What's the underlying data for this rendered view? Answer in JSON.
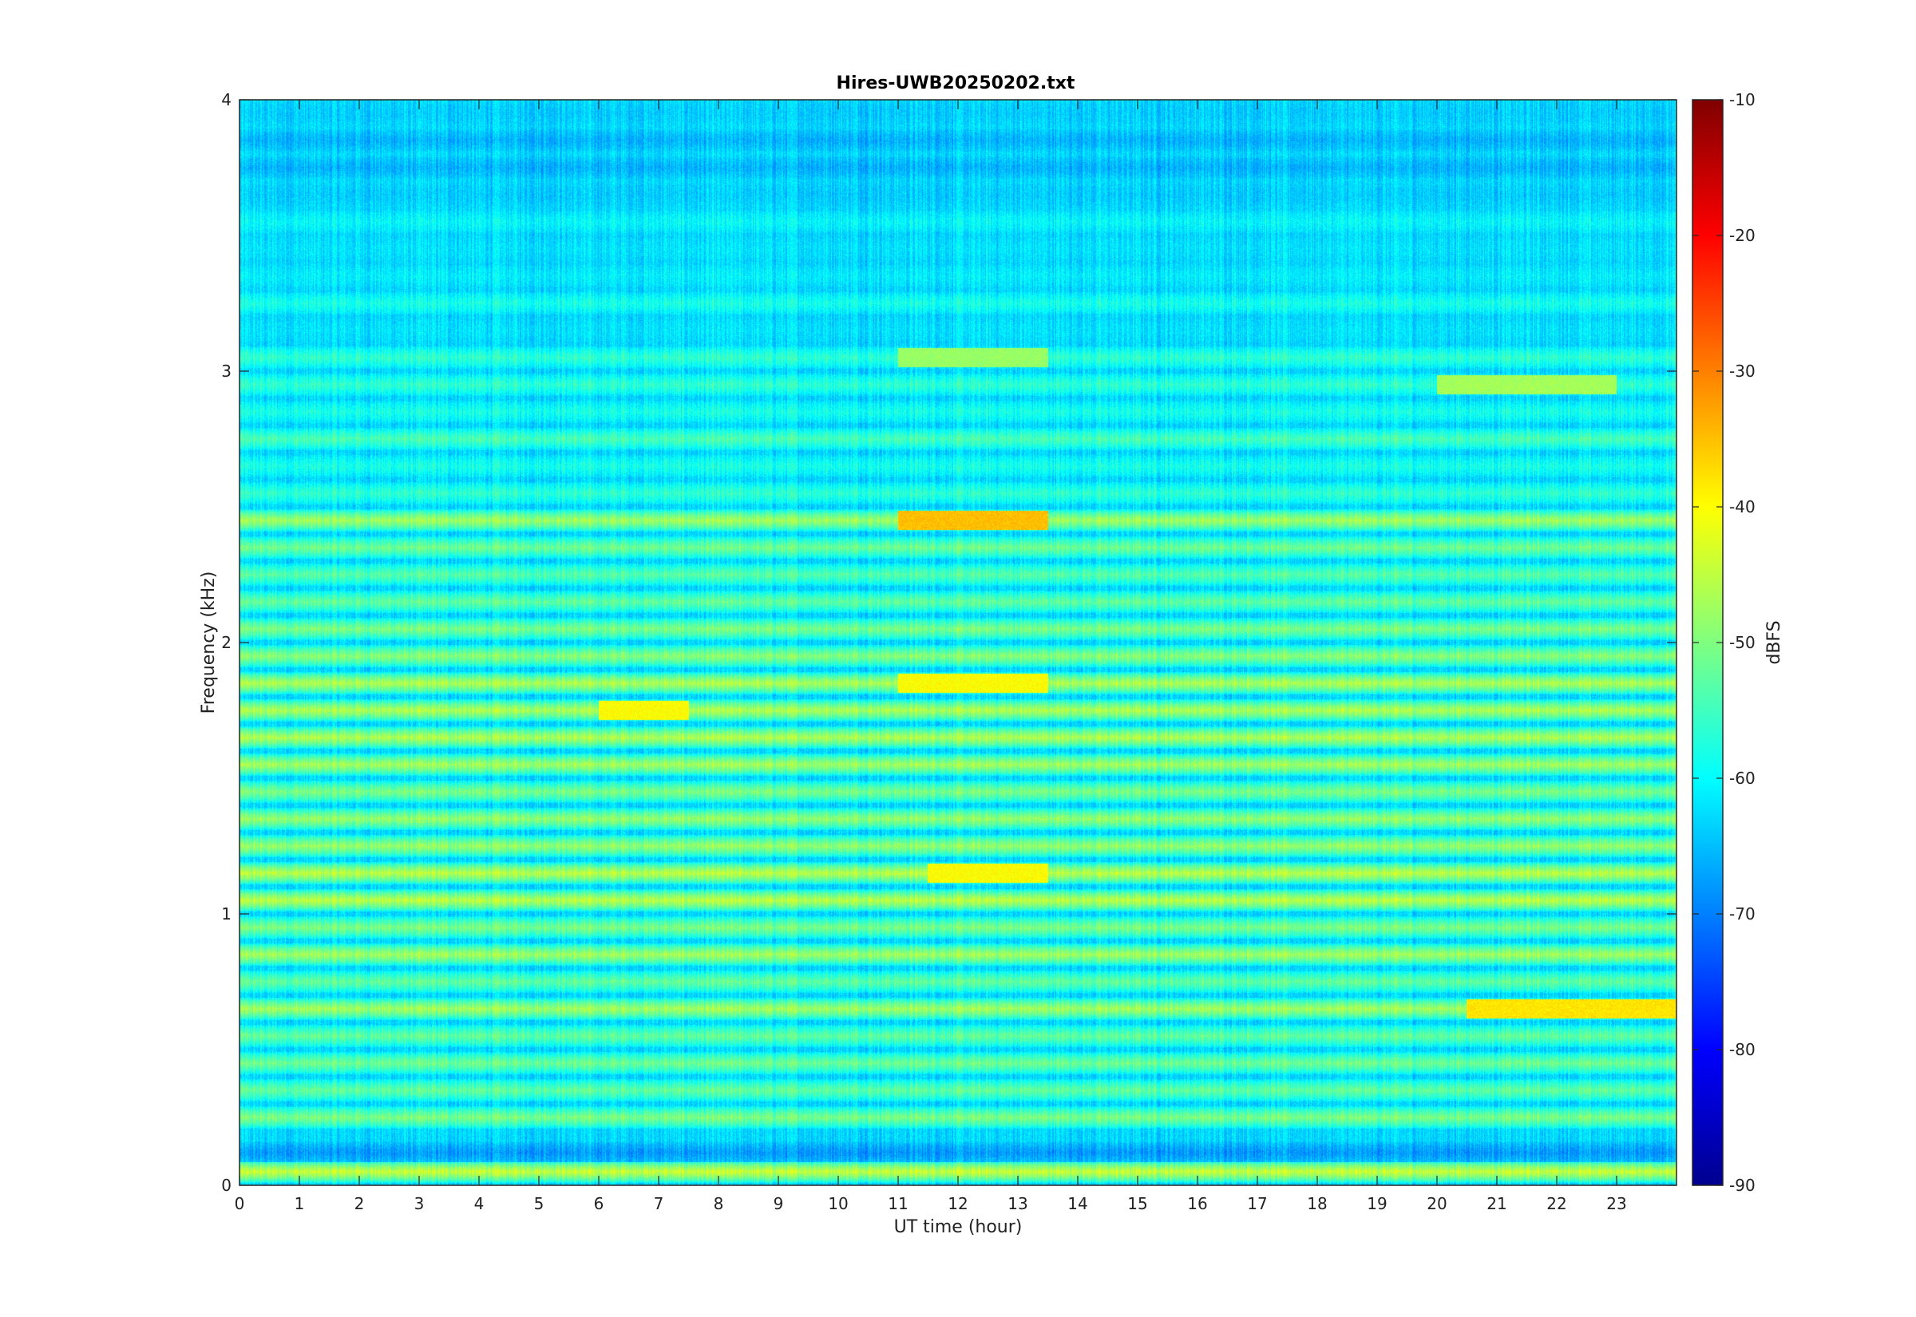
{
  "chart_data": {
    "type": "heatmap",
    "title": "Hires-UWB20250202.txt",
    "xlabel": "UT time (hour)",
    "ylabel": "Frequency (kHz)",
    "xlim": [
      0,
      24
    ],
    "ylim": [
      0,
      4
    ],
    "x_ticks": [
      "0",
      "1",
      "2",
      "3",
      "4",
      "5",
      "6",
      "7",
      "8",
      "9",
      "10",
      "11",
      "12",
      "13",
      "14",
      "15",
      "16",
      "17",
      "18",
      "19",
      "20",
      "21",
      "22",
      "23"
    ],
    "y_ticks": [
      "0",
      "1",
      "2",
      "3",
      "4"
    ],
    "colorbar": {
      "label": "dBFS",
      "range": [
        -90,
        -10
      ],
      "ticks": [
        "-90",
        "-80",
        "-70",
        "-60",
        "-50",
        "-40",
        "-30",
        "-20",
        "-10"
      ],
      "colormap": "jet"
    },
    "background_level_dbfs": -63,
    "bands": [
      {
        "f_khz": 0.05,
        "level_dbfs": -44
      },
      {
        "f_khz": 0.12,
        "level_dbfs": -68
      },
      {
        "f_khz": 0.25,
        "level_dbfs": -50
      },
      {
        "f_khz": 0.35,
        "level_dbfs": -52
      },
      {
        "f_khz": 0.45,
        "level_dbfs": -51
      },
      {
        "f_khz": 0.55,
        "level_dbfs": -52
      },
      {
        "f_khz": 0.65,
        "level_dbfs": -47
      },
      {
        "f_khz": 0.75,
        "level_dbfs": -52
      },
      {
        "f_khz": 0.85,
        "level_dbfs": -47
      },
      {
        "f_khz": 0.95,
        "level_dbfs": -50
      },
      {
        "f_khz": 1.05,
        "level_dbfs": -45
      },
      {
        "f_khz": 1.15,
        "level_dbfs": -45
      },
      {
        "f_khz": 1.25,
        "level_dbfs": -48
      },
      {
        "f_khz": 1.35,
        "level_dbfs": -48
      },
      {
        "f_khz": 1.45,
        "level_dbfs": -50
      },
      {
        "f_khz": 1.55,
        "level_dbfs": -47
      },
      {
        "f_khz": 1.65,
        "level_dbfs": -46
      },
      {
        "f_khz": 1.75,
        "level_dbfs": -46
      },
      {
        "f_khz": 1.85,
        "level_dbfs": -46
      },
      {
        "f_khz": 1.95,
        "level_dbfs": -49
      },
      {
        "f_khz": 2.05,
        "level_dbfs": -50
      },
      {
        "f_khz": 2.15,
        "level_dbfs": -52
      },
      {
        "f_khz": 2.25,
        "level_dbfs": -53
      },
      {
        "f_khz": 2.35,
        "level_dbfs": -51
      },
      {
        "f_khz": 2.45,
        "level_dbfs": -47
      },
      {
        "f_khz": 2.55,
        "level_dbfs": -56
      },
      {
        "f_khz": 2.65,
        "level_dbfs": -58
      },
      {
        "f_khz": 2.75,
        "level_dbfs": -54
      },
      {
        "f_khz": 2.85,
        "level_dbfs": -58
      },
      {
        "f_khz": 2.95,
        "level_dbfs": -56
      },
      {
        "f_khz": 3.05,
        "level_dbfs": -56
      },
      {
        "f_khz": 3.15,
        "level_dbfs": -62
      },
      {
        "f_khz": 3.25,
        "level_dbfs": -58
      },
      {
        "f_khz": 3.35,
        "level_dbfs": -61
      },
      {
        "f_khz": 3.45,
        "level_dbfs": -62
      },
      {
        "f_khz": 3.55,
        "level_dbfs": -60
      },
      {
        "f_khz": 3.65,
        "level_dbfs": -64
      },
      {
        "f_khz": 3.75,
        "level_dbfs": -66
      },
      {
        "f_khz": 3.85,
        "level_dbfs": -66
      },
      {
        "f_khz": 3.95,
        "level_dbfs": -64
      }
    ],
    "hotspots": [
      {
        "t_start_h": 11.0,
        "t_end_h": 13.5,
        "f_khz": 2.45,
        "level_dbfs": -35
      },
      {
        "t_start_h": 11.0,
        "t_end_h": 13.5,
        "f_khz": 1.85,
        "level_dbfs": -40
      },
      {
        "t_start_h": 20.5,
        "t_end_h": 24.0,
        "f_khz": 0.65,
        "level_dbfs": -38
      },
      {
        "t_start_h": 6.0,
        "t_end_h": 7.5,
        "f_khz": 1.75,
        "level_dbfs": -40
      },
      {
        "t_start_h": 11.5,
        "t_end_h": 13.5,
        "f_khz": 1.15,
        "level_dbfs": -40
      },
      {
        "t_start_h": 11.0,
        "t_end_h": 13.5,
        "f_khz": 3.05,
        "level_dbfs": -48
      },
      {
        "t_start_h": 20.0,
        "t_end_h": 23.0,
        "f_khz": 2.95,
        "level_dbfs": -47
      }
    ]
  }
}
